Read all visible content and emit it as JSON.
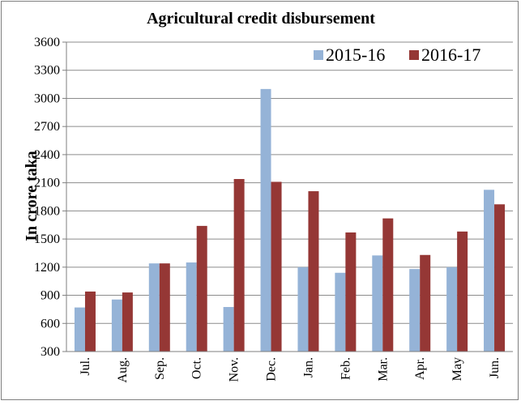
{
  "chart_data": {
    "type": "bar",
    "title": "Agricultural credit disbursement",
    "xlabel": "",
    "ylabel": "In crore taka",
    "categories": [
      "Jul.",
      "Aug.",
      "Sep.",
      "Oct.",
      "Nov.",
      "Dec.",
      "Jan.",
      "Feb.",
      "Mar.",
      "Apr.",
      "May",
      "Jun."
    ],
    "series": [
      {
        "name": "2015-16",
        "color": "#95b3d7",
        "values": [
          770,
          855,
          1240,
          1250,
          775,
          3100,
          1200,
          1140,
          1325,
          1180,
          1200,
          2025
        ]
      },
      {
        "name": "2016-17",
        "color": "#953735",
        "values": [
          940,
          930,
          1240,
          1640,
          2140,
          2110,
          2010,
          1570,
          1720,
          1330,
          1580,
          1870
        ]
      }
    ],
    "ylim": [
      300,
      3600
    ],
    "yticks": [
      300,
      600,
      900,
      1200,
      1500,
      1800,
      2100,
      2400,
      2700,
      3000,
      3300,
      3600
    ],
    "grid": true,
    "legend": "top-right"
  }
}
